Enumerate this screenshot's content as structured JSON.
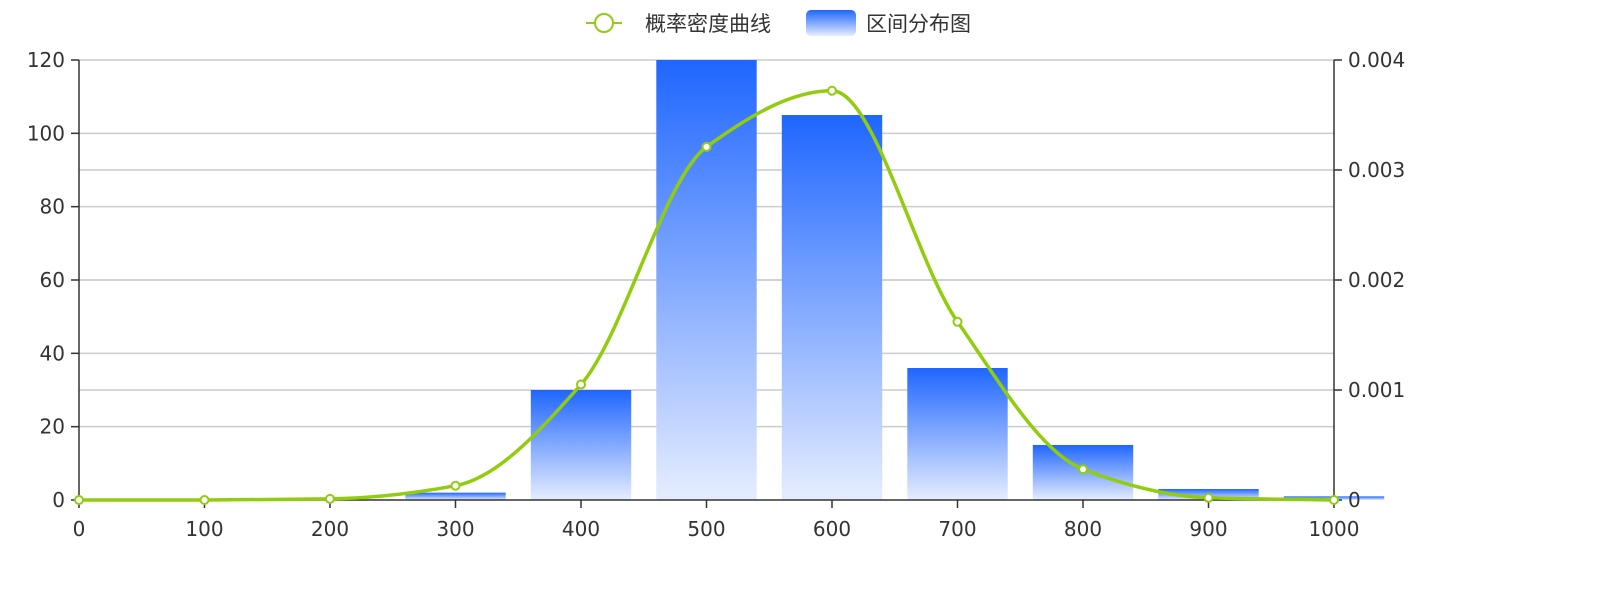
{
  "chart_data": {
    "type": "bar",
    "legend": {
      "position": "top-center",
      "items": [
        {
          "label": "概率密度曲线",
          "kind": "line"
        },
        {
          "label": "区间分布图",
          "kind": "bar"
        }
      ]
    },
    "x_axis": {
      "range": [
        0,
        1000
      ],
      "ticks": [
        "0",
        "100",
        "200",
        "300",
        "400",
        "500",
        "600",
        "700",
        "800",
        "900",
        "1000"
      ]
    },
    "y_axis_left": {
      "range": [
        0,
        120
      ],
      "ticks": [
        "0",
        "20",
        "40",
        "60",
        "80",
        "100",
        "120"
      ]
    },
    "y_axis_right": {
      "range": [
        0,
        0.004
      ],
      "ticks": [
        "0",
        "0.001",
        "0.002",
        "0.003",
        "0.004"
      ]
    },
    "grid": true,
    "series": [
      {
        "name": "区间分布图",
        "type": "bar",
        "axis": "left",
        "bins": [
          {
            "x0": 260,
            "x1": 340,
            "value": 2
          },
          {
            "x0": 360,
            "x1": 440,
            "value": 30
          },
          {
            "x0": 460,
            "x1": 540,
            "value": 120
          },
          {
            "x0": 560,
            "x1": 640,
            "value": 105
          },
          {
            "x0": 660,
            "x1": 740,
            "value": 36
          },
          {
            "x0": 760,
            "x1": 840,
            "value": 15
          },
          {
            "x0": 860,
            "x1": 940,
            "value": 3
          },
          {
            "x0": 960,
            "x1": 1040,
            "value": 1
          }
        ]
      },
      {
        "name": "概率密度曲线",
        "type": "line",
        "axis": "right",
        "x": [
          0,
          100,
          200,
          300,
          400,
          500,
          600,
          700,
          800,
          900,
          1000
        ],
        "values": [
          0,
          0,
          1e-05,
          0.00013,
          0.00105,
          0.00321,
          0.00372,
          0.00162,
          0.00028,
          2e-05,
          0
        ]
      }
    ],
    "colors": {
      "bar_top": "#1f66ff",
      "bar_bottom": "#e6edff",
      "line": "#91cc0f",
      "marker_fill": "#ffffff",
      "grid": "#cccccc",
      "axis": "#333333"
    }
  }
}
